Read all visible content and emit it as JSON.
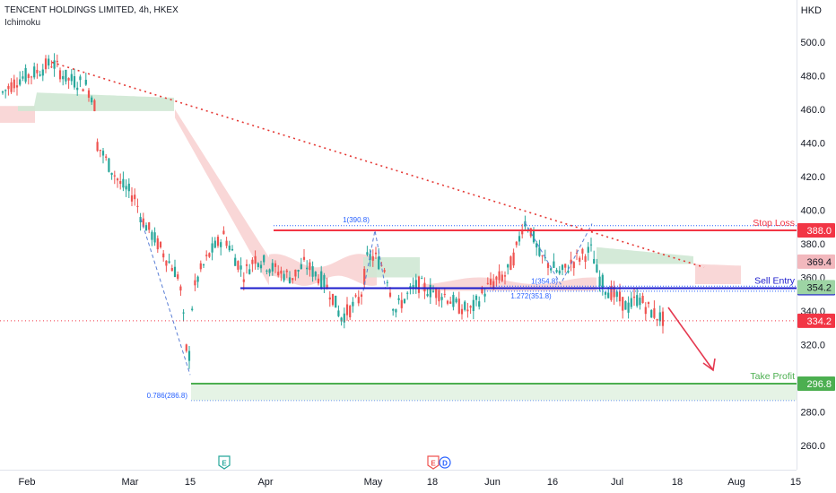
{
  "header": {
    "title": "TENCENT HOLDINGS LIMITED, 4h, HKEX",
    "indicator": "Ichimoku",
    "currency": "HKD"
  },
  "chart_data": {
    "type": "candlestick",
    "symbol": "TENCENT HOLDINGS LIMITED",
    "interval": "4h",
    "exchange": "HKEX",
    "currency": "HKD",
    "x_ticks": [
      "Feb",
      "Mar",
      "15",
      "Apr",
      "May",
      "18",
      "Jun",
      "16",
      "Jul",
      "18",
      "Aug",
      "15"
    ],
    "y_ticks": [
      500.0,
      480.0,
      460.0,
      440.0,
      420.0,
      400.0,
      380.0,
      360.0,
      340.0,
      320.0,
      280.0,
      260.0
    ],
    "ylim": [
      250,
      510
    ],
    "levels": {
      "stop_loss": {
        "label": "Stop Loss",
        "value": "388.0",
        "color": "#f23645"
      },
      "sell_entry": {
        "label": "Sell Entry",
        "value": "353.6",
        "color": "#1c1ccc"
      },
      "take_profit": {
        "label": "Take Profit",
        "value": "296.8",
        "color": "#4caf50"
      }
    },
    "price_tags": [
      {
        "value": "369.4",
        "color": "#f2b8bd",
        "text_color": "#131722"
      },
      {
        "value": "354.2",
        "color": "#9dd4a4",
        "text_color": "#131722"
      },
      {
        "value": "334.2",
        "color": "#f23645",
        "text_color": "#ffffff"
      }
    ],
    "fib_labels": [
      "1(390.8)",
      "1(354.8)",
      "1.272(351.8)",
      "0.786(286.8)"
    ],
    "event_markers": [
      "E",
      "E",
      "D"
    ],
    "colors": {
      "bull": "#26a69a",
      "bear": "#ef5350",
      "cloud_bull": "#cfe8d4",
      "cloud_bear": "#f8d3d3",
      "trendline": "#e53935",
      "arrow": "#e53950"
    }
  }
}
